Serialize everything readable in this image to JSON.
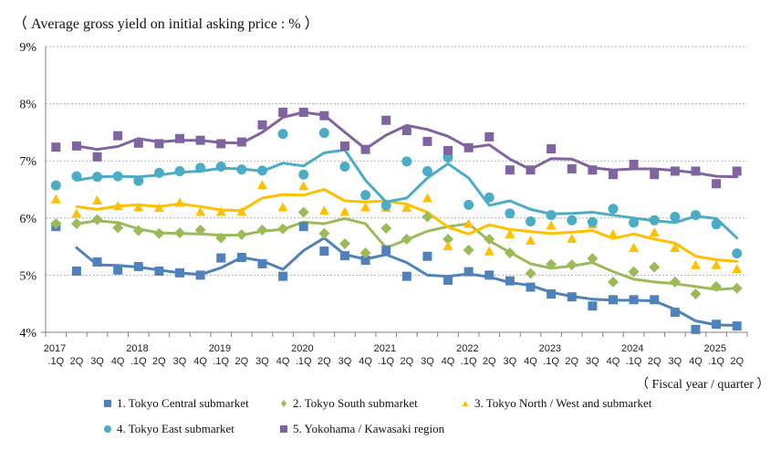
{
  "chart_data": {
    "type": "line",
    "title": "（ Average gross yield on initial asking price : % ）",
    "xlabel": "（ Fiscal year / quarter ）",
    "ylabel": "",
    "ylim": [
      4,
      9
    ],
    "yticks": [
      "9%",
      "8%",
      "7%",
      "6%",
      "5%",
      "4%"
    ],
    "ytick_values": [
      9,
      8,
      7,
      6,
      5,
      4
    ],
    "grid": true,
    "legend_position": "bottom",
    "year_labels": [
      {
        "label": "2017",
        "index": 0
      },
      {
        "label": "2018",
        "index": 4
      },
      {
        "label": "2019",
        "index": 8
      },
      {
        "label": "2020",
        "index": 12
      },
      {
        "label": "2021",
        "index": 16
      },
      {
        "label": "2022",
        "index": 20
      },
      {
        "label": "2023",
        "index": 24
      },
      {
        "label": "2024",
        "index": 28
      },
      {
        "label": "2025",
        "index": 32
      }
    ],
    "categories": [
      ".1Q",
      "2Q",
      "3Q",
      "4Q",
      ".1Q",
      "2Q",
      "3Q",
      "4Q",
      ".1Q",
      "2Q",
      "3Q",
      "4Q",
      ".1Q",
      "2Q",
      "3Q",
      "4Q",
      ".1Q",
      "2Q",
      "3Q",
      "4Q",
      ".1Q",
      "2Q",
      "3Q",
      "4Q",
      ".1Q",
      "2Q",
      "3Q",
      "4Q",
      ".1Q",
      "2Q",
      "3Q",
      "4Q",
      ".1Q",
      "2Q"
    ],
    "series": [
      {
        "name": "1. Tokyo Central submarket",
        "color": "#4F81BD",
        "marker": "square",
        "values": [
          5.85,
          5.07,
          5.23,
          5.09,
          5.15,
          5.07,
          5.04,
          5.0,
          5.3,
          5.31,
          5.2,
          4.98,
          5.85,
          5.42,
          5.34,
          5.26,
          5.44,
          4.98,
          5.33,
          4.91,
          5.06,
          5.0,
          4.9,
          4.79,
          4.67,
          4.62,
          4.46,
          4.57,
          4.57,
          4.57,
          4.35,
          4.05,
          4.14,
          4.11
        ],
        "trend": [
          null,
          5.48,
          5.18,
          5.17,
          5.14,
          5.09,
          5.04,
          5.01,
          5.13,
          5.31,
          5.25,
          5.1,
          5.43,
          5.65,
          5.36,
          5.28,
          5.36,
          5.22,
          5.0,
          4.98,
          5.02,
          4.97,
          4.87,
          4.82,
          4.7,
          4.63,
          4.58,
          4.56,
          4.56,
          4.55,
          4.4,
          4.2,
          4.13,
          4.12
        ]
      },
      {
        "name": "2. Tokyo South submarket",
        "color": "#9BBB59",
        "marker": "diamond",
        "values": [
          5.9,
          5.9,
          5.97,
          5.83,
          5.78,
          5.73,
          5.74,
          5.79,
          5.65,
          5.71,
          5.79,
          5.81,
          6.1,
          5.73,
          5.55,
          5.39,
          5.82,
          5.63,
          6.02,
          5.63,
          5.44,
          5.63,
          5.39,
          5.03,
          5.19,
          5.18,
          5.29,
          4.88,
          5.06,
          5.14,
          4.88,
          4.67,
          4.8,
          4.77
        ],
        "trend": [
          null,
          5.9,
          5.95,
          5.92,
          5.81,
          5.74,
          5.73,
          5.72,
          5.7,
          5.7,
          5.77,
          5.8,
          5.93,
          5.9,
          5.99,
          5.9,
          5.48,
          5.62,
          5.77,
          5.85,
          5.9,
          5.6,
          5.4,
          5.2,
          5.12,
          5.16,
          5.22,
          5.06,
          4.93,
          4.88,
          4.85,
          4.8,
          4.75,
          4.77
        ]
      },
      {
        "name": "3. Tokyo North / West and  submarket",
        "color": "#FFC000",
        "marker": "triangle",
        "values": [
          6.32,
          6.07,
          6.3,
          6.2,
          6.18,
          6.17,
          6.26,
          6.1,
          6.1,
          6.1,
          6.57,
          6.18,
          6.55,
          6.12,
          6.1,
          6.18,
          6.17,
          6.17,
          6.34,
          5.5,
          5.89,
          5.41,
          5.71,
          5.6,
          5.86,
          5.63,
          5.88,
          5.71,
          5.47,
          5.74,
          5.47,
          5.17,
          5.17,
          5.1
        ],
        "trend": [
          null,
          6.2,
          6.15,
          6.21,
          6.23,
          6.2,
          6.25,
          6.2,
          6.14,
          6.13,
          6.35,
          6.41,
          6.4,
          6.5,
          6.3,
          6.28,
          6.3,
          6.24,
          6.1,
          5.84,
          5.72,
          5.88,
          5.8,
          5.76,
          5.73,
          5.75,
          5.78,
          5.64,
          5.72,
          5.63,
          5.56,
          5.33,
          5.27,
          5.24
        ]
      },
      {
        "name": "4. Tokyo East submarket",
        "color": "#4BACC6",
        "marker": "circle",
        "values": [
          6.57,
          6.73,
          6.72,
          6.73,
          6.65,
          6.79,
          6.82,
          6.88,
          6.9,
          6.85,
          6.83,
          7.47,
          6.76,
          7.49,
          6.9,
          6.4,
          6.22,
          6.99,
          6.82,
          7.06,
          6.23,
          6.36,
          6.08,
          5.94,
          6.05,
          5.96,
          5.93,
          6.16,
          5.92,
          5.96,
          6.02,
          6.05,
          5.89,
          5.38
        ],
        "trend": [
          null,
          6.66,
          6.72,
          6.73,
          6.72,
          6.75,
          6.8,
          6.82,
          6.87,
          6.86,
          6.82,
          6.96,
          6.91,
          7.14,
          7.19,
          6.66,
          6.28,
          6.35,
          6.7,
          6.95,
          6.7,
          6.22,
          6.3,
          6.15,
          6.07,
          6.08,
          6.1,
          6.05,
          6.0,
          5.95,
          5.92,
          6.03,
          5.99,
          5.65
        ]
      },
      {
        "name": "5. Yokohama / Kawasaki region",
        "color": "#8064A2",
        "marker": "square",
        "values": [
          7.24,
          7.26,
          7.07,
          7.44,
          7.31,
          7.3,
          7.39,
          7.36,
          7.3,
          7.33,
          7.63,
          7.85,
          7.85,
          7.79,
          7.26,
          7.2,
          7.71,
          7.53,
          7.34,
          7.18,
          7.23,
          7.42,
          6.84,
          6.84,
          7.21,
          6.86,
          6.84,
          6.76,
          6.94,
          6.76,
          6.82,
          6.82,
          6.6,
          6.82
        ],
        "trend": [
          null,
          7.26,
          7.2,
          7.25,
          7.39,
          7.33,
          7.36,
          7.36,
          7.32,
          7.31,
          7.5,
          7.76,
          7.85,
          7.8,
          7.5,
          7.21,
          7.45,
          7.62,
          7.55,
          7.43,
          7.23,
          7.28,
          7.03,
          6.85,
          7.04,
          7.03,
          6.88,
          6.84,
          6.86,
          6.86,
          6.83,
          6.79,
          6.73,
          6.72
        ]
      }
    ]
  }
}
